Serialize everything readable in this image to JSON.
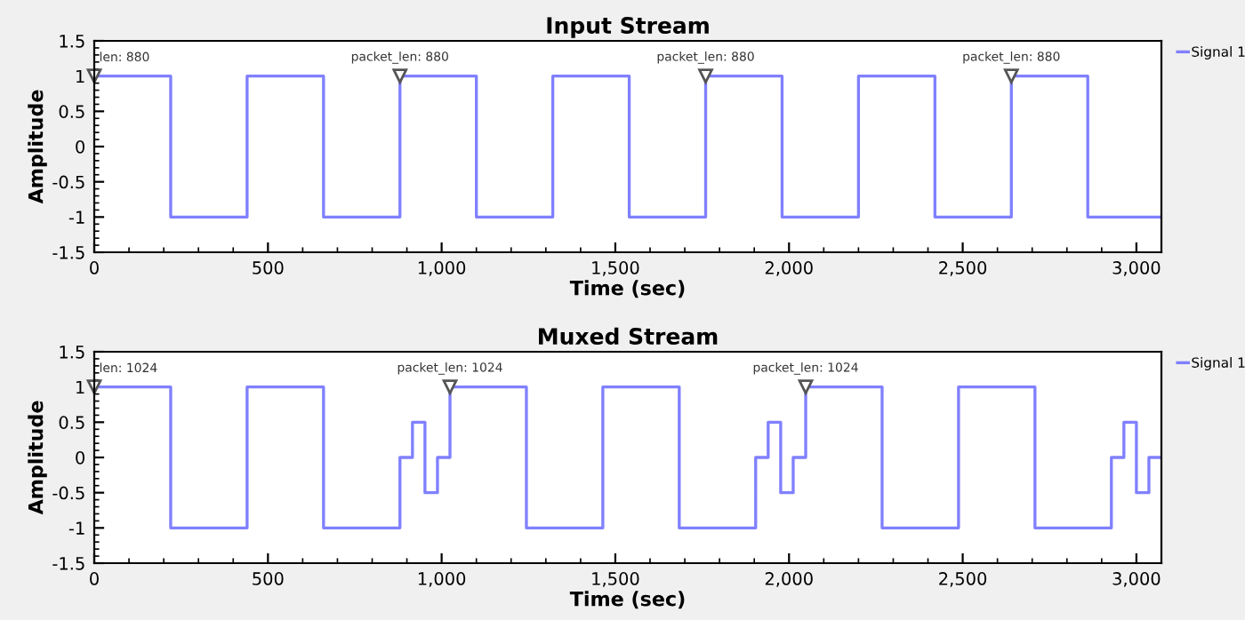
{
  "chart_data": [
    {
      "type": "step",
      "title": "Input Stream",
      "xlabel": "Time (sec)",
      "ylabel": "Amplitude",
      "series": [
        {
          "name": "Signal 1",
          "color": "#8080ff",
          "x": [
            0,
            220,
            440,
            660,
            880,
            1100,
            1320,
            1540,
            1760,
            1980,
            2200,
            2420,
            2640,
            2860,
            3072
          ],
          "values": [
            1,
            -1,
            1,
            -1,
            1,
            -1,
            1,
            -1,
            1,
            -1,
            1,
            -1,
            1,
            -1,
            -1
          ]
        }
      ],
      "xlim": [
        0,
        3072
      ],
      "xticks": [
        0,
        500,
        {
          "value": 1000,
          "label": "1,000"
        },
        {
          "value": 1500,
          "label": "1,500"
        },
        {
          "value": 2000,
          "label": "2,000"
        },
        {
          "value": 2500,
          "label": "2,500"
        },
        {
          "value": 3000,
          "label": "3,000"
        }
      ],
      "ylim": [
        -1.5,
        1.5
      ],
      "yticks": [
        -1.5,
        -1,
        -0.5,
        0,
        0.5,
        1,
        1.5
      ],
      "annotations": [
        {
          "text": "len: 880",
          "x": 0,
          "y": 1
        },
        {
          "text": "packet_len: 880",
          "x": 880,
          "y": 1
        },
        {
          "text": "packet_len: 880",
          "x": 1760,
          "y": 1
        },
        {
          "text": "packet_len: 880",
          "x": 2640,
          "y": 1
        }
      ],
      "legend": "top right",
      "grid": false
    },
    {
      "type": "step",
      "title": "Muxed Stream",
      "xlabel": "Time (sec)",
      "ylabel": "Amplitude",
      "series": [
        {
          "name": "Signal 1",
          "color": "#8080ff",
          "x": [
            0,
            220,
            440,
            660,
            880,
            916,
            952,
            988,
            1024,
            1244,
            1464,
            1684,
            1904,
            1940,
            1976,
            2012,
            2048,
            2268,
            2488,
            2708,
            2928,
            2964,
            3000,
            3036,
            3072
          ],
          "values": [
            1,
            -1,
            1,
            -1,
            0,
            0.5,
            -0.5,
            0,
            1,
            -1,
            1,
            -1,
            0,
            0.5,
            -0.5,
            0,
            1,
            -1,
            1,
            -1,
            0,
            0.5,
            -0.5,
            0,
            0
          ]
        }
      ],
      "xlim": [
        0,
        3072
      ],
      "xticks": [
        0,
        500,
        {
          "value": 1000,
          "label": "1,000"
        },
        {
          "value": 1500,
          "label": "1,500"
        },
        {
          "value": 2000,
          "label": "2,000"
        },
        {
          "value": 2500,
          "label": "2,500"
        },
        {
          "value": 3000,
          "label": "3,000"
        }
      ],
      "ylim": [
        -1.5,
        1.5
      ],
      "yticks": [
        -1.5,
        -1,
        -0.5,
        0,
        0.5,
        1,
        1.5
      ],
      "annotations": [
        {
          "text": "len: 1024",
          "x": 0,
          "y": 1
        },
        {
          "text": "packet_len: 1024",
          "x": 1024,
          "y": 1
        },
        {
          "text": "packet_len: 1024",
          "x": 2048,
          "y": 1
        }
      ],
      "legend": "top right",
      "grid": false
    }
  ]
}
